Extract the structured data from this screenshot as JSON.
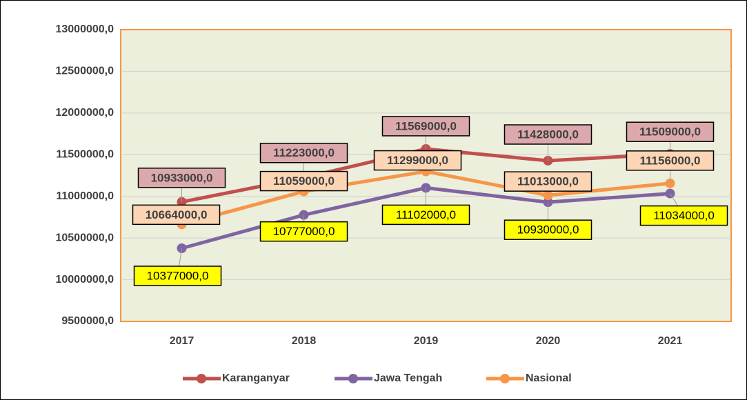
{
  "chart_data": {
    "type": "line",
    "categories": [
      "2017",
      "2018",
      "2019",
      "2020",
      "2021"
    ],
    "series": [
      {
        "name": "Karanganyar",
        "color": "#c0504d",
        "values": [
          10933000,
          11223000,
          11569000,
          11428000,
          11509000
        ],
        "value_labels": [
          "10933000,0",
          "11223000,0",
          "11569000,0",
          "11428000,0",
          "11509000,0"
        ]
      },
      {
        "name": "Jawa Tengah",
        "color": "#8064a2",
        "values": [
          10377000,
          10777000,
          11102000,
          10930000,
          11034000
        ],
        "value_labels": [
          "10377000,0",
          "10777000,0",
          "11102000,0",
          "10930000,0",
          "11034000,0"
        ]
      },
      {
        "name": "Nasional",
        "color": "#f79646",
        "values": [
          10664000,
          11059000,
          11299000,
          11013000,
          11156000
        ],
        "value_labels": [
          "10664000,0",
          "11059000,0",
          "11299000,0",
          "11013000,0",
          "11156000,0"
        ]
      }
    ],
    "ylim": [
      9500000,
      13000000
    ],
    "yticks": [
      {
        "value": 9500000,
        "label": "9500000,0"
      },
      {
        "value": 10000000,
        "label": "10000000,0"
      },
      {
        "value": 10500000,
        "label": "10500000,0"
      },
      {
        "value": 11000000,
        "label": "11000000,0"
      },
      {
        "value": 11500000,
        "label": "11500000,0"
      },
      {
        "value": 12000000,
        "label": "12000000,0"
      },
      {
        "value": 12500000,
        "label": "12500000,0"
      },
      {
        "value": 13000000,
        "label": "13000000,0"
      }
    ],
    "grid": true,
    "legend": "bottom"
  }
}
